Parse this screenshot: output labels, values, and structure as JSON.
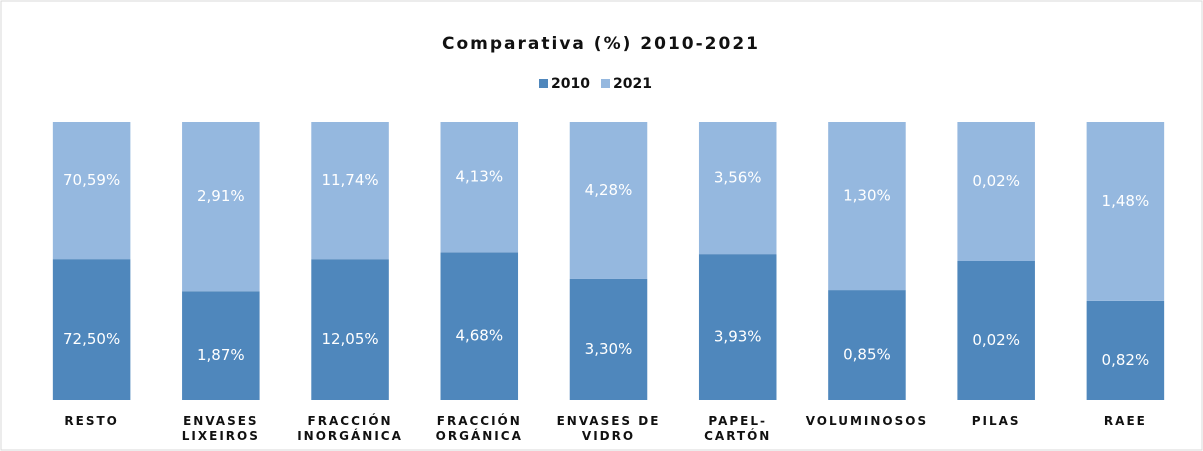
{
  "chart_data": {
    "type": "bar",
    "stacking": "percent",
    "title": "Comparativa (%) 2010-2021",
    "categories": [
      "RESTO",
      "ENVASES\nLIXEIROS",
      "FRACCIÓN\nINORGÁNICA",
      "FRACCIÓN\nORGÁNICA",
      "ENVASES DE\nVIDRO",
      "PAPEL-\nCARTÓN",
      "VOLUMINOSOS",
      "PILAS",
      "RAEE"
    ],
    "series": [
      {
        "name": "2010",
        "color": "#4f87bc",
        "values": [
          72.5,
          1.87,
          12.05,
          4.68,
          3.3,
          3.93,
          0.85,
          0.02,
          0.82
        ],
        "value_labels": [
          "72,50%",
          "1,87%",
          "12,05%",
          "4,68%",
          "3,30%",
          "3,93%",
          "0,85%",
          "0,02%",
          "0,82%"
        ]
      },
      {
        "name": "2021",
        "color": "#95b8df",
        "values": [
          70.59,
          2.91,
          11.74,
          4.13,
          4.28,
          3.56,
          1.3,
          0.02,
          1.48
        ],
        "value_labels": [
          "70,59%",
          "2,91%",
          "11,74%",
          "4,13%",
          "4,28%",
          "3,56%",
          "1,30%",
          "0,02%",
          "1,48%"
        ]
      }
    ],
    "legend": "top"
  }
}
